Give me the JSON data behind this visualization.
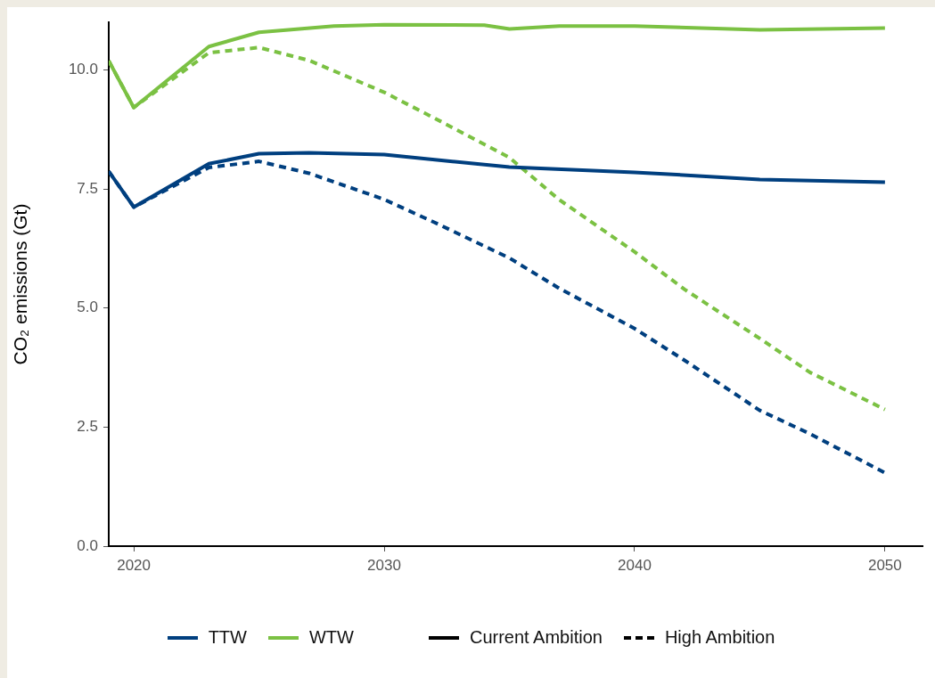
{
  "chart_data": {
    "type": "line",
    "ylabel": "CO₂ emissions (Gt)",
    "xlim": [
      2019,
      2051.5
    ],
    "ylim": [
      0,
      11
    ],
    "xticks": [
      2020,
      2030,
      2040,
      2050
    ],
    "yticks": [
      {
        "value": 0,
        "label": "0.0"
      },
      {
        "value": 2.5,
        "label": "2.5"
      },
      {
        "value": 5,
        "label": "5.0"
      },
      {
        "value": 7.5,
        "label": "7.5"
      },
      {
        "value": 10,
        "label": "10.0"
      }
    ],
    "grid": false,
    "legend": "bottom",
    "marker": "none",
    "series": [
      {
        "name": "TTW",
        "color": "#003f7f",
        "line_style": "solid",
        "x": [
          2019,
          2020,
          2023,
          2025,
          2027,
          2030,
          2035,
          2040,
          2045,
          2050
        ],
        "values": [
          7.87,
          7.12,
          8.03,
          8.24,
          8.26,
          8.22,
          7.96,
          7.85,
          7.7,
          7.64
        ]
      },
      {
        "name": "WTW",
        "color": "#7bc143",
        "line_style": "solid",
        "x": [
          2019,
          2020,
          2023,
          2025,
          2028,
          2030,
          2034,
          2035,
          2037,
          2040,
          2045,
          2050
        ],
        "values": [
          10.19,
          9.21,
          10.49,
          10.79,
          10.92,
          10.95,
          10.94,
          10.86,
          10.92,
          10.92,
          10.84,
          10.88
        ]
      },
      {
        "color": "#003f7f",
        "line_style": "dashed",
        "x": [
          2019,
          2020,
          2023,
          2025,
          2027,
          2030,
          2032,
          2035,
          2037,
          2040,
          2042,
          2045,
          2047,
          2050
        ],
        "values": [
          7.87,
          7.12,
          7.95,
          8.08,
          7.83,
          7.28,
          6.8,
          6.05,
          5.41,
          4.57,
          3.9,
          2.85,
          2.36,
          1.54
        ]
      },
      {
        "color": "#7bc143",
        "line_style": "dashed",
        "x": [
          2019,
          2020,
          2023,
          2025,
          2027,
          2030,
          2032,
          2035,
          2037,
          2040,
          2042,
          2045,
          2047,
          2050
        ],
        "values": [
          10.19,
          9.21,
          10.36,
          10.47,
          10.2,
          9.53,
          8.99,
          8.16,
          7.27,
          6.18,
          5.39,
          4.36,
          3.65,
          2.87
        ]
      }
    ],
    "annotations": [
      "Current Ambition",
      "High Ambition"
    ]
  }
}
